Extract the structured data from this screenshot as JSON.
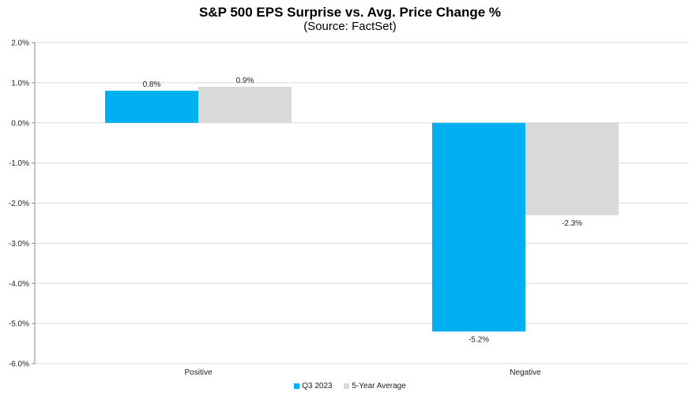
{
  "chart_data": {
    "type": "bar",
    "title": "S&P 500 EPS Surprise vs. Avg. Price Change %",
    "subtitle": "(Source: FactSet)",
    "categories": [
      "Positive",
      "Negative"
    ],
    "series": [
      {
        "name": "Q3 2023",
        "values": [
          0.8,
          -5.2
        ],
        "labels": [
          "0.8%",
          "-5.2%"
        ],
        "color": "#00B0F0"
      },
      {
        "name": "5-Year Average",
        "values": [
          0.9,
          -2.3
        ],
        "labels": [
          "0.9%",
          "-2.3%"
        ],
        "color": "#D9D9D9"
      }
    ],
    "ylim": [
      -6,
      2
    ],
    "yticks": [
      2,
      1,
      0,
      -1,
      -2,
      -3,
      -4,
      -5,
      -6
    ],
    "ytick_labels": [
      "2.0%",
      "1.0%",
      "0.0%",
      "-1.0%",
      "-2.0%",
      "-3.0%",
      "-4.0%",
      "-5.0%",
      "-6.0%"
    ],
    "grid": true,
    "legend_position": "bottom"
  }
}
